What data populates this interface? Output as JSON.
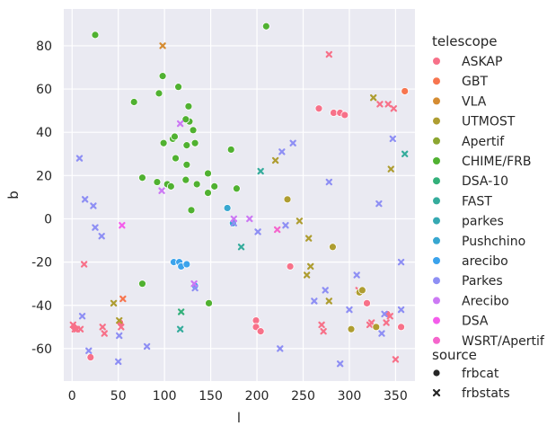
{
  "chart_data": {
    "type": "scatter",
    "xlabel": "l",
    "ylabel": "b",
    "xlim": [
      -9,
      371
    ],
    "ylim": [
      -75,
      97
    ],
    "xticks": [
      0,
      50,
      100,
      150,
      200,
      250,
      300,
      350
    ],
    "yticks": [
      -60,
      -40,
      -20,
      0,
      20,
      40,
      60,
      80
    ],
    "grid": true,
    "background": "#eaeaf2",
    "legend_position": "right",
    "hue_legend": {
      "title": "telescope",
      "entries": [
        {
          "name": "ASKAP",
          "color": "#f77189"
        },
        {
          "name": "GBT",
          "color": "#f7754f"
        },
        {
          "name": "VLA",
          "color": "#d58c32"
        },
        {
          "name": "UTMOST",
          "color": "#ae9d31"
        },
        {
          "name": "Apertif",
          "color": "#8ca631"
        },
        {
          "name": "CHIME/FRB",
          "color": "#50b131"
        },
        {
          "name": "DSA-10",
          "color": "#33b07a"
        },
        {
          "name": "FAST",
          "color": "#35ac9c"
        },
        {
          "name": "parkes",
          "color": "#36a9b2"
        },
        {
          "name": "Pushchino",
          "color": "#38a7d0"
        },
        {
          "name": "arecibo",
          "color": "#3ba3ec"
        },
        {
          "name": "Parkes",
          "color": "#8e8ff4"
        },
        {
          "name": "Arecibo",
          "color": "#cc79f4"
        },
        {
          "name": "DSA",
          "color": "#f45deb"
        },
        {
          "name": "WSRT/Apertif",
          "color": "#f565cc"
        }
      ]
    },
    "style_legend": {
      "title": "source",
      "entries": [
        {
          "name": "frbcat",
          "marker": "circle"
        },
        {
          "name": "frbstats",
          "marker": "x"
        }
      ]
    },
    "series": [
      {
        "name": "ASKAP",
        "source": "frbcat",
        "points": [
          [
            20,
            -64
          ],
          [
            199,
            -47
          ],
          [
            199,
            -50
          ],
          [
            204,
            -52
          ],
          [
            267,
            51
          ],
          [
            283,
            49
          ],
          [
            290,
            49
          ],
          [
            295,
            48
          ],
          [
            319,
            -39
          ],
          [
            341,
            -44
          ],
          [
            356,
            -50
          ],
          [
            2,
            -50
          ],
          [
            52,
            -48
          ],
          [
            236,
            -22
          ]
        ]
      },
      {
        "name": "ASKAP",
        "source": "frbstats",
        "points": [
          [
            1,
            -49
          ],
          [
            3,
            -51
          ],
          [
            5,
            -51
          ],
          [
            9,
            -51
          ],
          [
            13,
            -21
          ],
          [
            33,
            -50
          ],
          [
            35,
            -53
          ],
          [
            53,
            -50
          ],
          [
            278,
            76
          ],
          [
            310,
            -33
          ],
          [
            322,
            -49
          ],
          [
            324,
            -48
          ],
          [
            333,
            53
          ],
          [
            342,
            53
          ],
          [
            348,
            51
          ],
          [
            350,
            -65
          ],
          [
            270,
            -49
          ],
          [
            272,
            -52
          ],
          [
            340,
            -48
          ],
          [
            344,
            -45
          ]
        ]
      },
      {
        "name": "GBT",
        "source": "frbcat",
        "points": [
          [
            360,
            59
          ]
        ]
      },
      {
        "name": "GBT",
        "source": "frbstats",
        "points": [
          [
            55,
            -37
          ]
        ]
      },
      {
        "name": "VLA",
        "source": "frbstats",
        "points": [
          [
            98,
            80
          ]
        ]
      },
      {
        "name": "UTMOST",
        "source": "frbcat",
        "points": [
          [
            233,
            9
          ],
          [
            282,
            -13
          ],
          [
            302,
            -51
          ],
          [
            311,
            -34
          ],
          [
            314,
            -33
          ],
          [
            329,
            -50
          ]
        ]
      },
      {
        "name": "UTMOST",
        "source": "frbstats",
        "points": [
          [
            45,
            -39
          ],
          [
            51,
            -47
          ],
          [
            220,
            27
          ],
          [
            246,
            -1
          ],
          [
            256,
            -9
          ],
          [
            254,
            -26
          ],
          [
            258,
            -22
          ],
          [
            278,
            -38
          ],
          [
            326,
            56
          ],
          [
            345,
            23
          ]
        ]
      },
      {
        "name": "CHIME/FRB",
        "source": "frbcat",
        "points": [
          [
            25,
            85
          ],
          [
            210,
            89
          ],
          [
            67,
            54
          ],
          [
            94,
            58
          ],
          [
            98,
            66
          ],
          [
            99,
            35
          ],
          [
            103,
            16
          ],
          [
            107,
            15
          ],
          [
            109,
            37
          ],
          [
            111,
            38
          ],
          [
            112,
            28
          ],
          [
            115,
            61
          ],
          [
            123,
            18
          ],
          [
            124,
            25
          ],
          [
            124,
            34
          ],
          [
            126,
            52
          ],
          [
            127,
            45
          ],
          [
            129,
            4
          ],
          [
            131,
            41
          ],
          [
            133,
            35
          ],
          [
            135,
            16
          ],
          [
            147,
            21
          ],
          [
            147,
            12
          ],
          [
            154,
            15
          ],
          [
            172,
            32
          ],
          [
            178,
            14
          ],
          [
            76,
            19
          ],
          [
            76,
            -30
          ],
          [
            92,
            17
          ],
          [
            123,
            46
          ],
          [
            148,
            -39
          ]
        ]
      },
      {
        "name": "DSA-10",
        "source": "frbstats",
        "points": [
          [
            118,
            -43
          ]
        ]
      },
      {
        "name": "FAST",
        "source": "frbstats",
        "points": [
          [
            183,
            -13
          ],
          [
            204,
            22
          ],
          [
            360,
            30
          ],
          [
            117,
            -51
          ]
        ]
      },
      {
        "name": "Pushchino",
        "source": "frbcat",
        "points": [
          [
            168,
            5
          ],
          [
            174,
            -2
          ]
        ]
      },
      {
        "name": "arecibo",
        "source": "frbcat",
        "points": [
          [
            110,
            -20
          ],
          [
            116,
            -20
          ],
          [
            118,
            -22
          ],
          [
            124,
            -21
          ],
          [
            133,
            -31
          ]
        ]
      },
      {
        "name": "Parkes",
        "source": "frbstats",
        "points": [
          [
            8,
            28
          ],
          [
            14,
            9
          ],
          [
            18,
            -61
          ],
          [
            23,
            6
          ],
          [
            25,
            -4
          ],
          [
            32,
            -8
          ],
          [
            50,
            -66
          ],
          [
            51,
            -54
          ],
          [
            81,
            -59
          ],
          [
            175,
            -2
          ],
          [
            201,
            -6
          ],
          [
            227,
            31
          ],
          [
            231,
            -3
          ],
          [
            239,
            35
          ],
          [
            262,
            -38
          ],
          [
            274,
            -33
          ],
          [
            278,
            17
          ],
          [
            290,
            -67
          ],
          [
            300,
            -42
          ],
          [
            308,
            -26
          ],
          [
            332,
            7
          ],
          [
            335,
            -53
          ],
          [
            338,
            -44
          ],
          [
            347,
            37
          ],
          [
            356,
            -20
          ],
          [
            356,
            -42
          ],
          [
            225,
            -60
          ],
          [
            11,
            -45
          ],
          [
            133,
            -32
          ]
        ]
      },
      {
        "name": "Arecibo",
        "source": "frbstats",
        "points": [
          [
            97,
            13
          ],
          [
            117,
            44
          ],
          [
            175,
            0
          ],
          [
            192,
            0
          ],
          [
            132,
            -30
          ]
        ]
      },
      {
        "name": "DSA",
        "source": "frbstats",
        "points": [
          [
            54,
            -3
          ]
        ]
      },
      {
        "name": "WSRT/Apertif",
        "source": "frbstats",
        "points": [
          [
            222,
            -5
          ]
        ]
      }
    ]
  }
}
